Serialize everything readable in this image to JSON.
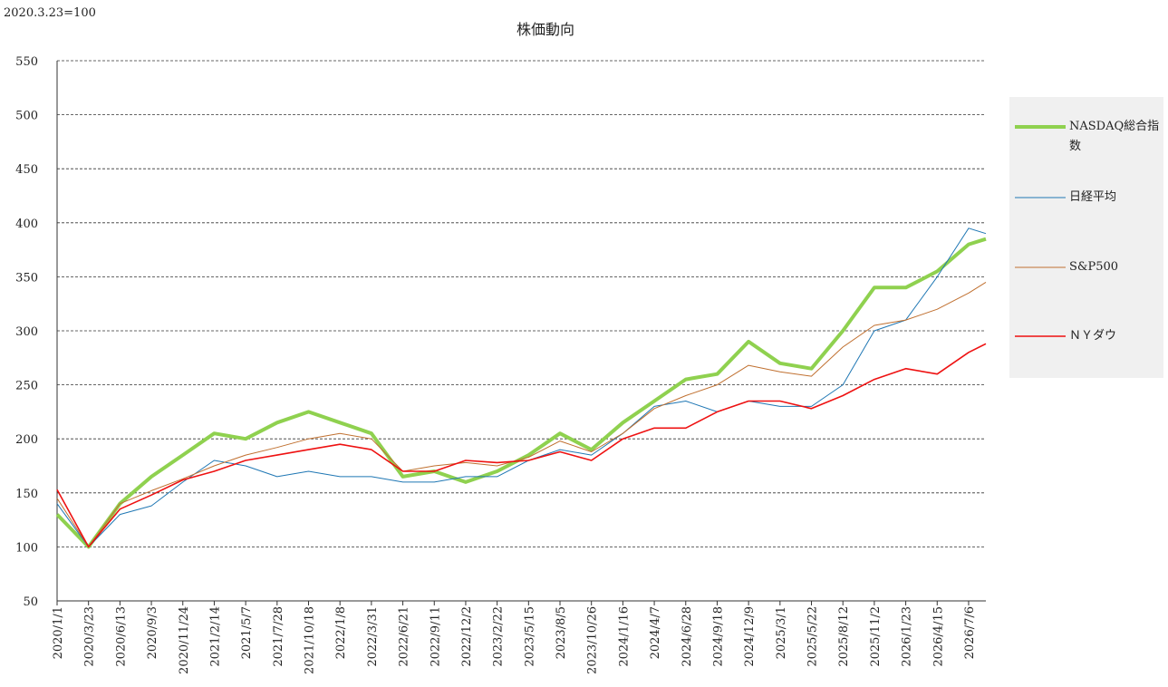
{
  "chart_data": {
    "type": "line",
    "title": "株価動向",
    "annotation": "2020.3.23=100",
    "x": [
      "2020/1/1",
      "2020/3/23",
      "2020/6/13",
      "2020/9/3",
      "2020/11/24",
      "2021/2/14",
      "2021/5/7",
      "2021/7/28",
      "2021/10/18",
      "2022/1/8",
      "2022/3/31",
      "2022/6/21",
      "2022/9/11",
      "2022/12/2",
      "2023/2/22",
      "2023/5/15",
      "2023/8/5",
      "2023/10/26",
      "2024/1/16",
      "2024/4/7",
      "2024/6/28",
      "2024/9/18",
      "2024/12/9",
      "2025/3/1",
      "2025/5/22",
      "2025/8/12",
      "2025/11/2",
      "2026/1/23",
      "2026/4/15",
      "2026/7/6",
      "2026/8/20"
    ],
    "series": [
      {
        "name": "NASDAQ総合指数",
        "color": "#8fd14f",
        "width": 4,
        "values": [
          130,
          100,
          140,
          165,
          185,
          205,
          200,
          215,
          225,
          215,
          205,
          165,
          170,
          160,
          170,
          185,
          205,
          190,
          215,
          235,
          255,
          260,
          290,
          270,
          265,
          300,
          340,
          340,
          355,
          380,
          385
        ]
      },
      {
        "name": "日経平均",
        "color": "#1f77b4",
        "width": 1,
        "values": [
          140,
          100,
          130,
          138,
          160,
          180,
          175,
          165,
          170,
          165,
          165,
          160,
          160,
          165,
          165,
          180,
          190,
          185,
          205,
          230,
          235,
          225,
          235,
          230,
          230,
          250,
          300,
          310,
          350,
          395,
          390
        ]
      },
      {
        "name": "S&P500",
        "color": "#c07030",
        "width": 1,
        "values": [
          145,
          100,
          140,
          152,
          163,
          175,
          185,
          192,
          200,
          205,
          200,
          170,
          175,
          178,
          175,
          183,
          198,
          188,
          205,
          228,
          240,
          250,
          268,
          262,
          258,
          285,
          305,
          310,
          320,
          335,
          345
        ]
      },
      {
        "name": "ＮＹダウ",
        "color": "#ee1111",
        "width": 1.6,
        "values": [
          153,
          100,
          135,
          148,
          162,
          170,
          180,
          185,
          190,
          195,
          190,
          170,
          170,
          180,
          178,
          180,
          188,
          180,
          200,
          210,
          210,
          225,
          235,
          235,
          228,
          240,
          255,
          265,
          260,
          280,
          288
        ]
      }
    ],
    "xlim": [
      "2020/1/1",
      "2026/8/20"
    ],
    "xticks": [
      "2020/1/1",
      "2020/3/23",
      "2020/6/13",
      "2020/9/3",
      "2020/11/24",
      "2021/2/14",
      "2021/5/7",
      "2021/7/28",
      "2021/10/18",
      "2022/1/8",
      "2022/3/31",
      "2022/6/21",
      "2022/9/11",
      "2022/12/2",
      "2023/2/22",
      "2023/5/15",
      "2023/8/5",
      "2023/10/26",
      "2024/1/16",
      "2024/4/7",
      "2024/6/28",
      "2024/9/18",
      "2024/12/9",
      "2025/3/1",
      "2025/5/22",
      "2025/8/12",
      "2025/11/2",
      "2026/1/23",
      "2026/4/15",
      "2026/7/6"
    ],
    "ylim": [
      50,
      550
    ],
    "yticks": [
      50,
      100,
      150,
      200,
      250,
      300,
      350,
      400,
      450,
      500,
      550
    ],
    "grid": true,
    "legend": "right"
  }
}
